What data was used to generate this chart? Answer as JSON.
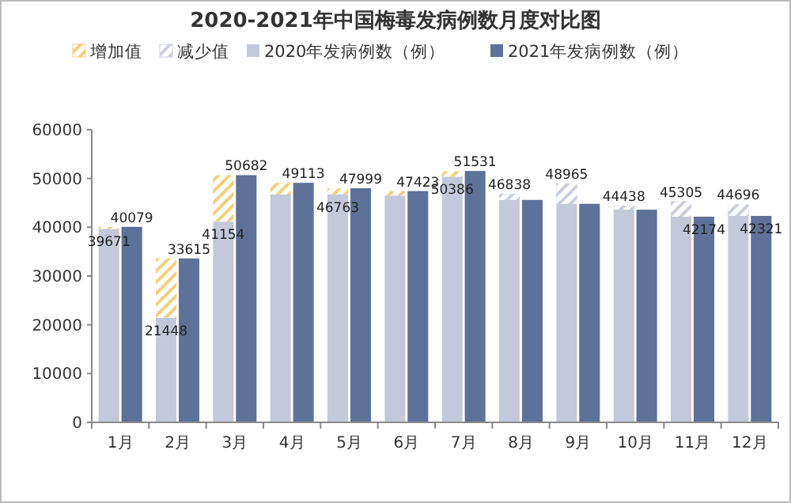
{
  "chart_data": {
    "type": "bar",
    "title": "2020-2021年中国梅毒发病例数月度对比图",
    "categories": [
      "1月",
      "2月",
      "3月",
      "4月",
      "5月",
      "6月",
      "7月",
      "8月",
      "9月",
      "10月",
      "11月",
      "12月"
    ],
    "series": [
      {
        "name": "增加值",
        "color": "#f2cf7a",
        "base": [
          39671,
          21448,
          41154,
          46700,
          46763,
          46500,
          50386,
          null,
          null,
          null,
          null,
          null
        ],
        "values": [
          400,
          12200,
          9500,
          2400,
          1200,
          900,
          1100,
          null,
          null,
          null,
          null,
          null
        ]
      },
      {
        "name": "减少值",
        "color": "#c9cfdf",
        "base": [
          null,
          null,
          null,
          null,
          null,
          null,
          null,
          45600,
          44800,
          43600,
          42174,
          42321
        ],
        "values": [
          null,
          null,
          null,
          null,
          null,
          null,
          null,
          1200,
          4200,
          800,
          3100,
          2400
        ]
      },
      {
        "name": "2020年发病例数（例）",
        "color": "#c3c9da",
        "values": [
          39671,
          21448,
          41154,
          46700,
          46763,
          46500,
          50386,
          46838,
          48965,
          44438,
          45305,
          44696
        ],
        "value_labels": [
          "39671",
          "21448",
          "41154",
          null,
          "46763",
          null,
          "50386",
          "46838",
          "48965",
          "44438",
          "45305",
          "44696"
        ]
      },
      {
        "name": "2021年发病例数（例）",
        "color": "#5e7198",
        "values": [
          40079,
          33615,
          50682,
          49113,
          47999,
          47423,
          51531,
          45600,
          44800,
          43600,
          42174,
          42321
        ],
        "value_labels": [
          "40079",
          "33615",
          "50682",
          "49113",
          "47999",
          "47423",
          "51531",
          null,
          null,
          null,
          "42174",
          "42321"
        ]
      }
    ],
    "ylim": [
      0,
      60000
    ],
    "yticks": [
      0,
      10000,
      20000,
      30000,
      40000,
      50000,
      60000
    ],
    "legend": "top"
  }
}
